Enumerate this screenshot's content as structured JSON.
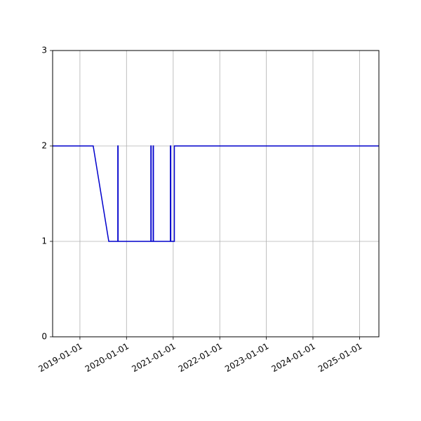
{
  "chart_data": {
    "type": "line",
    "title": "",
    "xlabel": "",
    "ylabel": "",
    "x_axis": "date",
    "xlim": [
      "2018-06-01",
      "2025-06-01"
    ],
    "ylim": [
      0,
      3
    ],
    "x_ticks": [
      "2019-01-01",
      "2020-01-01",
      "2021-01-01",
      "2022-01-01",
      "2023-01-01",
      "2024-01-01",
      "2025-01-01"
    ],
    "y_ticks": [
      0,
      1,
      2,
      3
    ],
    "grid": true,
    "line_color": "#0000cc",
    "grid_color": "#b0b0b0",
    "series": [
      {
        "x": [
          "2018-06-01",
          "2019-04-15",
          "2019-08-15",
          "2019-10-25",
          "2019-10-25",
          "2019-10-27",
          "2019-10-27",
          "2020-07-10",
          "2020-07-10",
          "2020-07-12",
          "2020-07-12",
          "2020-07-28",
          "2020-07-28",
          "2020-07-30",
          "2020-07-30",
          "2020-12-10",
          "2020-12-10",
          "2020-12-13",
          "2020-12-13",
          "2021-01-10",
          "2021-01-10",
          "2025-06-01"
        ],
        "y": [
          2,
          2,
          1,
          1,
          2,
          2,
          1,
          1,
          2,
          2,
          1,
          1,
          2,
          2,
          1,
          1,
          2,
          2,
          1,
          1,
          2,
          2
        ]
      }
    ]
  }
}
